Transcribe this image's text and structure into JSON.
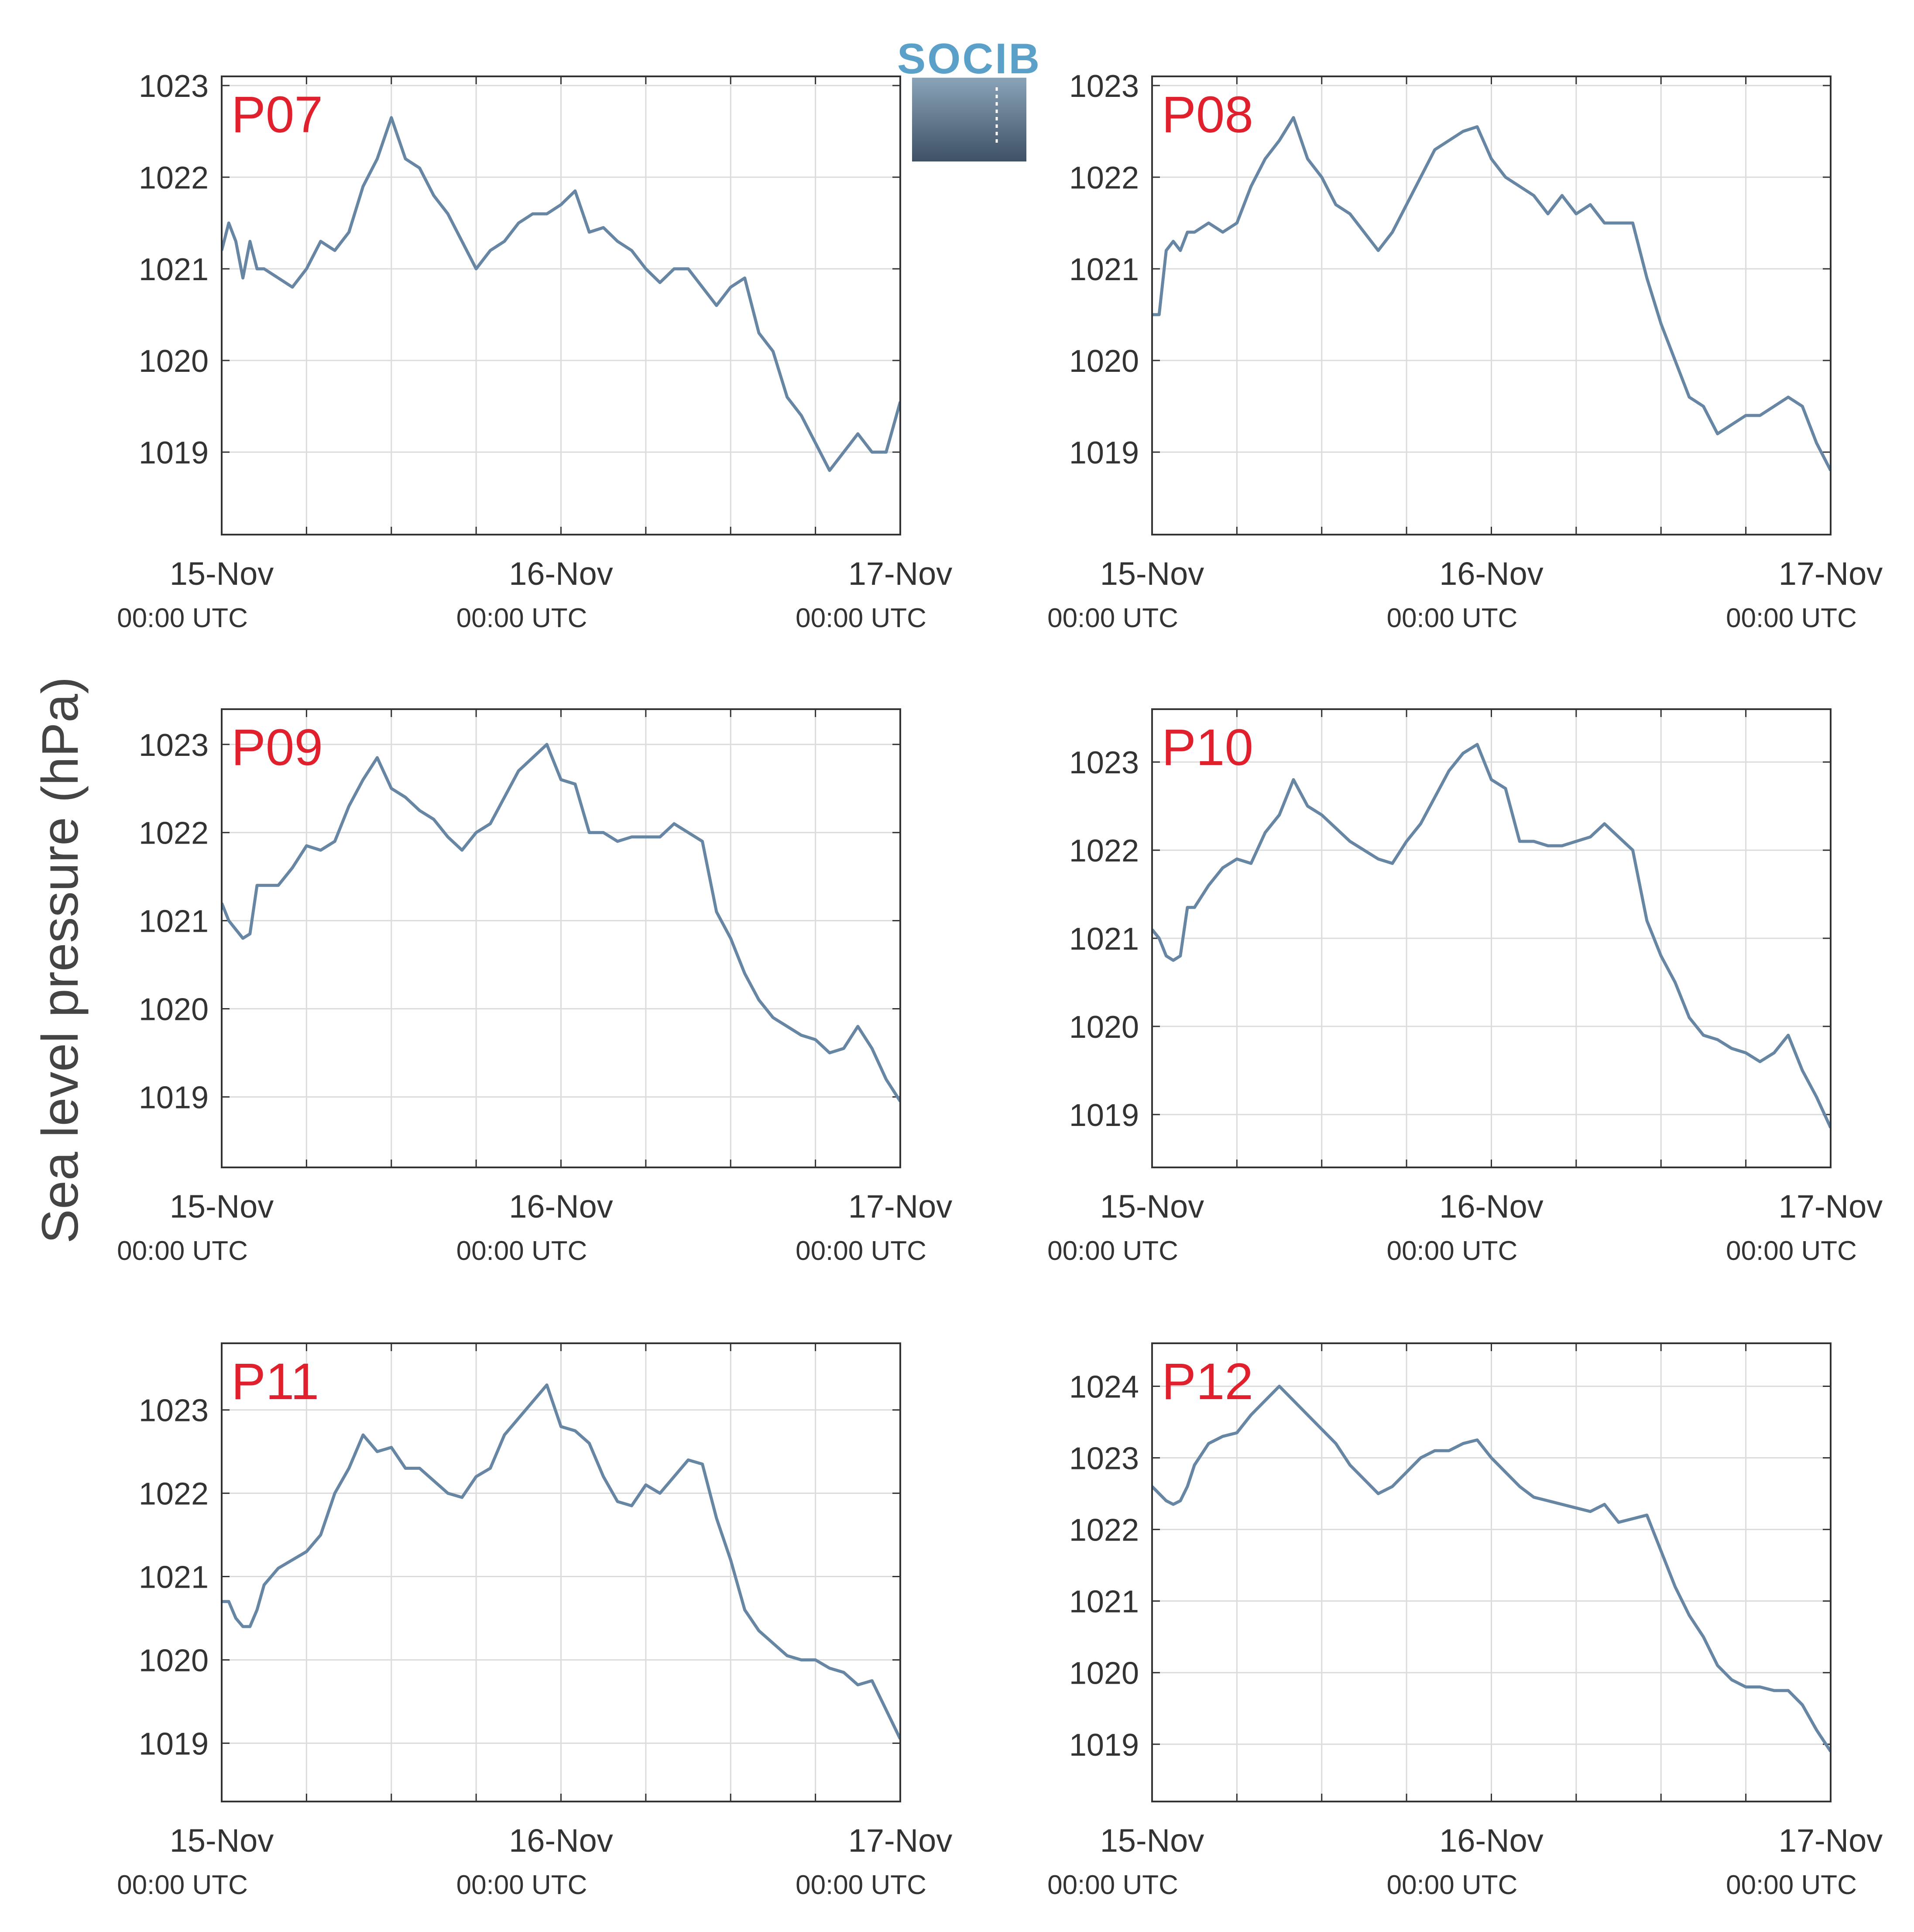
{
  "figure": {
    "ylabel": "Sea level pressure (hPa)",
    "logo_text": "SOCIB",
    "colors": {
      "line": "#6786a4",
      "panel_label": "#e0202c",
      "axis": "#333333",
      "grid": "#dcdcdc",
      "tick_text": "#333333",
      "logo_text": "#5aa0c8",
      "logo_top": "#8aa3b8",
      "logo_bottom": "#3e5166"
    }
  },
  "chart_data": [
    {
      "type": "line",
      "panel_label": "P07",
      "x_ticks": [
        {
          "date": "15-Nov",
          "time": "00:00 UTC"
        },
        {
          "date": "16-Nov",
          "time": "00:00 UTC"
        },
        {
          "date": "17-Nov",
          "time": "00:00 UTC"
        }
      ],
      "xlim": [
        "2023-11-15T00:00",
        "2023-11-17T00:00"
      ],
      "ylim": [
        1018.1,
        1023.1
      ],
      "yticks": [
        1019,
        1020,
        1021,
        1022,
        1023
      ],
      "grid": true,
      "series": [
        {
          "x_hours": [
            0,
            0.5,
            1,
            1.5,
            2,
            2.5,
            3,
            4,
            5,
            6,
            7,
            8,
            9,
            10,
            11,
            12,
            13,
            14,
            15,
            16,
            17,
            18,
            19,
            20,
            21,
            22,
            23,
            24,
            25,
            26,
            27,
            28,
            29,
            30,
            31,
            32,
            33,
            34,
            35,
            36,
            37,
            38,
            39,
            40,
            41,
            42,
            43,
            44,
            45,
            46,
            47,
            48
          ],
          "values": [
            1021.2,
            1021.5,
            1021.3,
            1020.9,
            1021.3,
            1021.0,
            1021.0,
            1020.9,
            1020.8,
            1021.0,
            1021.3,
            1021.2,
            1021.4,
            1021.9,
            1022.2,
            1022.65,
            1022.2,
            1022.1,
            1021.8,
            1021.6,
            1021.3,
            1021.0,
            1021.2,
            1021.3,
            1021.5,
            1021.6,
            1021.6,
            1021.7,
            1021.85,
            1021.4,
            1021.45,
            1021.3,
            1021.2,
            1021.0,
            1020.85,
            1021.0,
            1021.0,
            1020.8,
            1020.6,
            1020.8,
            1020.9,
            1020.3,
            1020.1,
            1019.6,
            1019.4,
            1019.1,
            1018.8,
            1019.0,
            1019.2,
            1019.0,
            1019.0,
            1019.55
          ]
        }
      ]
    },
    {
      "type": "line",
      "panel_label": "P08",
      "x_ticks": [
        {
          "date": "15-Nov",
          "time": "00:00 UTC"
        },
        {
          "date": "16-Nov",
          "time": "00:00 UTC"
        },
        {
          "date": "17-Nov",
          "time": "00:00 UTC"
        }
      ],
      "xlim": [
        "2023-11-15T00:00",
        "2023-11-17T00:00"
      ],
      "ylim": [
        1018.1,
        1023.1
      ],
      "yticks": [
        1019,
        1020,
        1021,
        1022,
        1023
      ],
      "grid": true,
      "series": [
        {
          "x_hours": [
            0,
            0.5,
            1,
            1.5,
            2,
            2.5,
            3,
            4,
            5,
            6,
            7,
            8,
            9,
            10,
            11,
            12,
            13,
            14,
            15,
            16,
            17,
            18,
            19,
            20,
            21,
            22,
            23,
            24,
            25,
            26,
            27,
            28,
            29,
            30,
            31,
            32,
            33,
            34,
            35,
            36,
            37,
            38,
            39,
            40,
            41,
            42,
            43,
            44,
            45,
            46,
            47,
            48
          ],
          "values": [
            1020.5,
            1020.5,
            1021.2,
            1021.3,
            1021.2,
            1021.4,
            1021.4,
            1021.5,
            1021.4,
            1021.5,
            1021.9,
            1022.2,
            1022.4,
            1022.65,
            1022.2,
            1022.0,
            1021.7,
            1021.6,
            1021.4,
            1021.2,
            1021.4,
            1021.7,
            1022.0,
            1022.3,
            1022.4,
            1022.5,
            1022.55,
            1022.2,
            1022.0,
            1021.9,
            1021.8,
            1021.6,
            1021.8,
            1021.6,
            1021.7,
            1021.5,
            1021.5,
            1021.5,
            1020.9,
            1020.4,
            1020.0,
            1019.6,
            1019.5,
            1019.2,
            1019.3,
            1019.4,
            1019.4,
            1019.5,
            1019.6,
            1019.5,
            1019.1,
            1018.8
          ]
        }
      ]
    },
    {
      "type": "line",
      "panel_label": "P09",
      "x_ticks": [
        {
          "date": "15-Nov",
          "time": "00:00 UTC"
        },
        {
          "date": "16-Nov",
          "time": "00:00 UTC"
        },
        {
          "date": "17-Nov",
          "time": "00:00 UTC"
        }
      ],
      "xlim": [
        "2023-11-15T00:00",
        "2023-11-17T00:00"
      ],
      "ylim": [
        1018.2,
        1023.4
      ],
      "yticks": [
        1019,
        1020,
        1021,
        1022,
        1023
      ],
      "grid": true,
      "series": [
        {
          "x_hours": [
            0,
            0.5,
            1,
            1.5,
            2,
            2.5,
            3,
            4,
            5,
            6,
            7,
            8,
            9,
            10,
            11,
            12,
            13,
            14,
            15,
            16,
            17,
            18,
            19,
            20,
            21,
            22,
            23,
            24,
            25,
            26,
            27,
            28,
            29,
            30,
            31,
            32,
            33,
            34,
            35,
            36,
            37,
            38,
            39,
            40,
            41,
            42,
            43,
            44,
            45,
            46,
            47,
            48
          ],
          "values": [
            1021.2,
            1021.0,
            1020.9,
            1020.8,
            1020.85,
            1021.4,
            1021.4,
            1021.4,
            1021.6,
            1021.85,
            1021.8,
            1021.9,
            1022.3,
            1022.6,
            1022.85,
            1022.5,
            1022.4,
            1022.25,
            1022.15,
            1021.95,
            1021.8,
            1022.0,
            1022.1,
            1022.4,
            1022.7,
            1022.85,
            1023.0,
            1022.6,
            1022.55,
            1022.0,
            1022.0,
            1021.9,
            1021.95,
            1021.95,
            1021.95,
            1022.1,
            1022.0,
            1021.9,
            1021.1,
            1020.8,
            1020.4,
            1020.1,
            1019.9,
            1019.8,
            1019.7,
            1019.65,
            1019.5,
            1019.55,
            1019.8,
            1019.55,
            1019.2,
            1018.95
          ]
        }
      ]
    },
    {
      "type": "line",
      "panel_label": "P10",
      "x_ticks": [
        {
          "date": "15-Nov",
          "time": "00:00 UTC"
        },
        {
          "date": "16-Nov",
          "time": "00:00 UTC"
        },
        {
          "date": "17-Nov",
          "time": "00:00 UTC"
        }
      ],
      "xlim": [
        "2023-11-15T00:00",
        "2023-11-17T00:00"
      ],
      "ylim": [
        1018.4,
        1023.6
      ],
      "yticks": [
        1019,
        1020,
        1021,
        1022,
        1023
      ],
      "grid": true,
      "series": [
        {
          "x_hours": [
            0,
            0.5,
            1,
            1.5,
            2,
            2.5,
            3,
            4,
            5,
            6,
            7,
            8,
            9,
            10,
            11,
            12,
            13,
            14,
            15,
            16,
            17,
            18,
            19,
            20,
            21,
            22,
            23,
            24,
            25,
            26,
            27,
            28,
            29,
            30,
            31,
            32,
            33,
            34,
            35,
            36,
            37,
            38,
            39,
            40,
            41,
            42,
            43,
            44,
            45,
            46,
            47,
            48
          ],
          "values": [
            1021.1,
            1021.0,
            1020.8,
            1020.75,
            1020.8,
            1021.35,
            1021.35,
            1021.6,
            1021.8,
            1021.9,
            1021.85,
            1022.2,
            1022.4,
            1022.8,
            1022.5,
            1022.4,
            1022.25,
            1022.1,
            1022.0,
            1021.9,
            1021.85,
            1022.1,
            1022.3,
            1022.6,
            1022.9,
            1023.1,
            1023.2,
            1022.8,
            1022.7,
            1022.1,
            1022.1,
            1022.05,
            1022.05,
            1022.1,
            1022.15,
            1022.3,
            1022.15,
            1022.0,
            1021.2,
            1020.8,
            1020.5,
            1020.1,
            1019.9,
            1019.85,
            1019.75,
            1019.7,
            1019.6,
            1019.7,
            1019.9,
            1019.5,
            1019.2,
            1018.85
          ]
        }
      ]
    },
    {
      "type": "line",
      "panel_label": "P11",
      "x_ticks": [
        {
          "date": "15-Nov",
          "time": "00:00 UTC"
        },
        {
          "date": "16-Nov",
          "time": "00:00 UTC"
        },
        {
          "date": "17-Nov",
          "time": "00:00 UTC"
        }
      ],
      "xlim": [
        "2023-11-15T00:00",
        "2023-11-17T00:00"
      ],
      "ylim": [
        1018.3,
        1023.8
      ],
      "yticks": [
        1019,
        1020,
        1021,
        1022,
        1023
      ],
      "grid": true,
      "series": [
        {
          "x_hours": [
            0,
            0.5,
            1,
            1.5,
            2,
            2.5,
            3,
            4,
            5,
            6,
            7,
            8,
            9,
            10,
            11,
            12,
            13,
            14,
            15,
            16,
            17,
            18,
            19,
            20,
            21,
            22,
            23,
            24,
            25,
            26,
            27,
            28,
            29,
            30,
            31,
            32,
            33,
            34,
            35,
            36,
            37,
            38,
            39,
            40,
            41,
            42,
            43,
            44,
            45,
            46,
            47,
            48
          ],
          "values": [
            1020.7,
            1020.7,
            1020.5,
            1020.4,
            1020.4,
            1020.6,
            1020.9,
            1021.1,
            1021.2,
            1021.3,
            1021.5,
            1022.0,
            1022.3,
            1022.7,
            1022.5,
            1022.55,
            1022.3,
            1022.3,
            1022.15,
            1022.0,
            1021.95,
            1022.2,
            1022.3,
            1022.7,
            1022.9,
            1023.1,
            1023.3,
            1022.8,
            1022.75,
            1022.6,
            1022.2,
            1021.9,
            1021.85,
            1022.1,
            1022.0,
            1022.2,
            1022.4,
            1022.35,
            1021.7,
            1021.2,
            1020.6,
            1020.35,
            1020.2,
            1020.05,
            1020.0,
            1020.0,
            1019.9,
            1019.85,
            1019.7,
            1019.75,
            1019.4,
            1019.05
          ]
        }
      ]
    },
    {
      "type": "line",
      "panel_label": "P12",
      "x_ticks": [
        {
          "date": "15-Nov",
          "time": "00:00 UTC"
        },
        {
          "date": "16-Nov",
          "time": "00:00 UTC"
        },
        {
          "date": "17-Nov",
          "time": "00:00 UTC"
        }
      ],
      "xlim": [
        "2023-11-15T00:00",
        "2023-11-17T00:00"
      ],
      "ylim": [
        1018.2,
        1024.6
      ],
      "yticks": [
        1019,
        1020,
        1021,
        1022,
        1023,
        1024
      ],
      "grid": true,
      "series": [
        {
          "x_hours": [
            0,
            0.5,
            1,
            1.5,
            2,
            2.5,
            3,
            4,
            5,
            6,
            7,
            8,
            9,
            10,
            11,
            12,
            13,
            14,
            15,
            16,
            17,
            18,
            19,
            20,
            21,
            22,
            23,
            24,
            25,
            26,
            27,
            28,
            29,
            30,
            31,
            32,
            33,
            34,
            35,
            36,
            37,
            38,
            39,
            40,
            41,
            42,
            43,
            44,
            45,
            46,
            47,
            48
          ],
          "values": [
            1022.6,
            1022.5,
            1022.4,
            1022.35,
            1022.4,
            1022.6,
            1022.9,
            1023.2,
            1023.3,
            1023.35,
            1023.6,
            1023.8,
            1024.0,
            1023.8,
            1023.6,
            1023.4,
            1023.2,
            1022.9,
            1022.7,
            1022.5,
            1022.6,
            1022.8,
            1023.0,
            1023.1,
            1023.1,
            1023.2,
            1023.25,
            1023.0,
            1022.8,
            1022.6,
            1022.45,
            1022.4,
            1022.35,
            1022.3,
            1022.25,
            1022.35,
            1022.1,
            1022.15,
            1022.2,
            1021.7,
            1021.2,
            1020.8,
            1020.5,
            1020.1,
            1019.9,
            1019.8,
            1019.8,
            1019.75,
            1019.75,
            1019.55,
            1019.2,
            1018.9
          ]
        }
      ]
    }
  ]
}
